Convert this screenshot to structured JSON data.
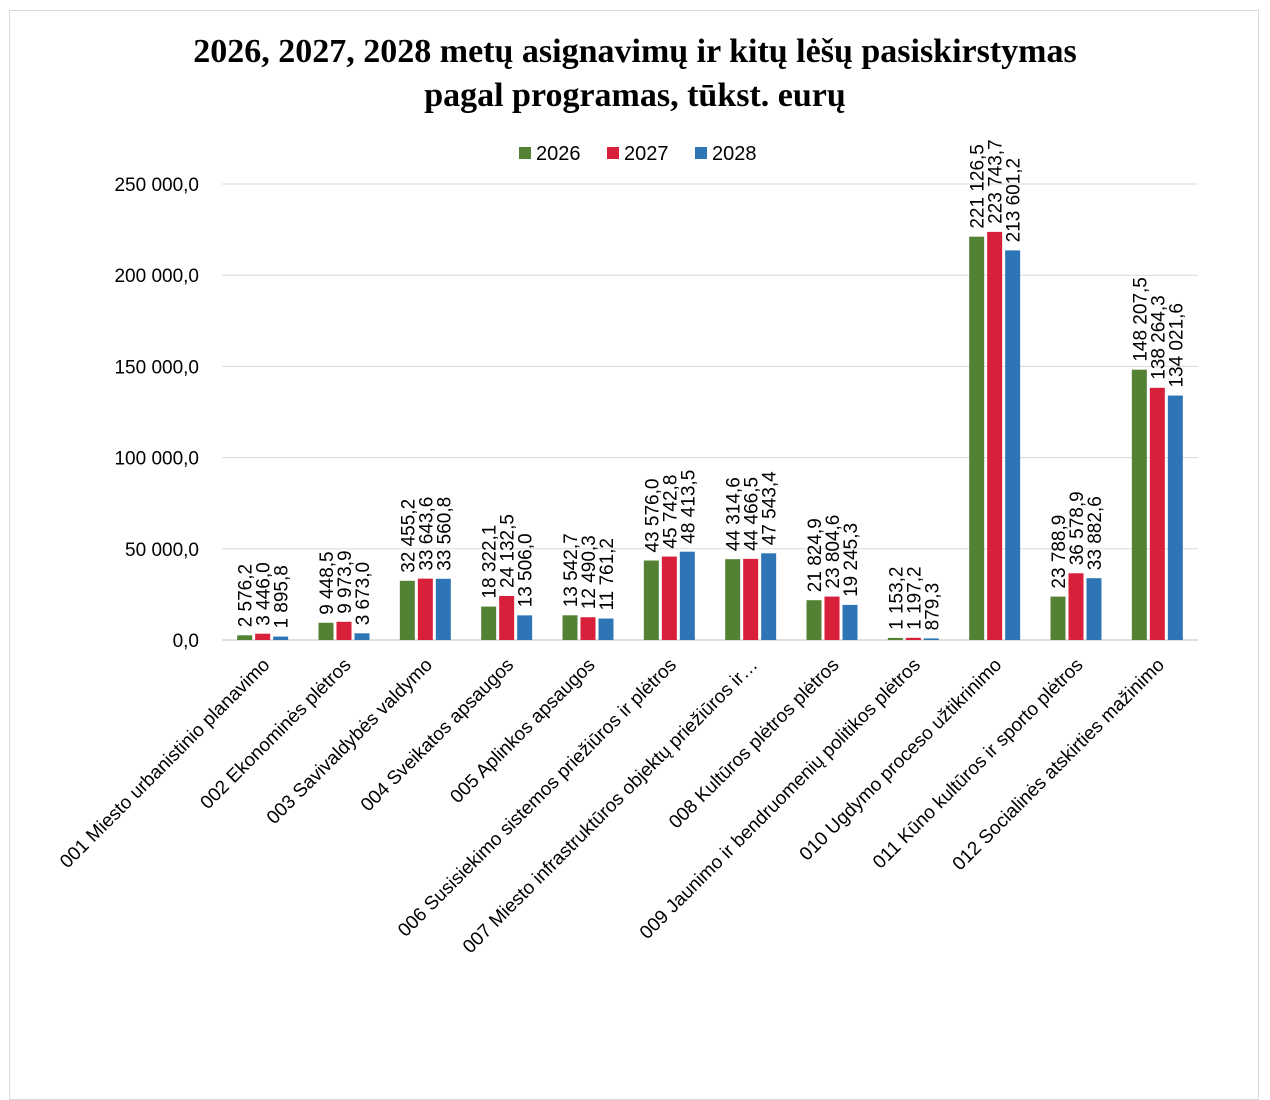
{
  "chart_data": {
    "type": "bar",
    "title": "2026, 2027, 2028 metų asignavimų ir kitų lėšų pasiskirstymas pagal programas, tūkst. eurų",
    "title_lines": [
      "2026, 2027, 2028 metų asignavimų ir kitų lėšų pasiskirstymas",
      "pagal programas, tūkst. eurų"
    ],
    "xlabel": "",
    "ylabel": "",
    "ylim": [
      0,
      250000
    ],
    "y_ticks": [
      0,
      50000,
      100000,
      150000,
      200000,
      250000
    ],
    "y_tick_labels": [
      "0,0",
      "50 000,0",
      "100 000,0",
      "150 000,0",
      "200 000,0",
      "250 000,0"
    ],
    "grid": true,
    "legend_position": "top",
    "categories": [
      "001 Miesto urbanistinio planavimo",
      "002 Ekonominės plėtros",
      "003 Savivaldybės valdymo",
      "004 Sveikatos apsaugos",
      "005 Aplinkos apsaugos",
      "006 Susisiekimo sistemos priežiūros ir plėtros",
      "007 Miesto infrastruktūros objektų priežiūros ir…",
      "008 Kultūros plėtros plėtros",
      "009 Jaunimo ir bendruomenių politikos plėtros",
      "010 Ugdymo proceso užtikrinimo",
      "011 Kūno kultūros ir sporto plėtros",
      "012 Socialinės atskirties mažinimo"
    ],
    "series": [
      {
        "name": "2026",
        "color": "#548235",
        "values": [
          2576.2,
          9448.5,
          32455.2,
          18322.1,
          13542.7,
          43576.0,
          44314.6,
          21824.9,
          1153.2,
          221126.5,
          23788.9,
          148207.5
        ],
        "labels": [
          "2 576,2",
          "9 448,5",
          "32 455,2",
          "18 322,1",
          "13 542,7",
          "43 576,0",
          "44 314,6",
          "21 824,9",
          "1 153,2",
          "221 126,5",
          "23 788,9",
          "148 207,5"
        ]
      },
      {
        "name": "2027",
        "color": "#d9203a",
        "values": [
          3446.0,
          9973.9,
          33643.6,
          24132.5,
          12490.3,
          45742.8,
          44466.5,
          23804.6,
          1197.2,
          223743.7,
          36578.9,
          138264.3
        ],
        "labels": [
          "3 446,0",
          "9 973,9",
          "33 643,6",
          "24 132,5",
          "12 490,3",
          "45 742,8",
          "44 466,5",
          "23 804,6",
          "1 197,2",
          "223 743,7",
          "36 578,9",
          "138 264,3"
        ]
      },
      {
        "name": "2028",
        "color": "#2e75b6",
        "values": [
          1895.8,
          3673.0,
          33560.8,
          13506.0,
          11761.2,
          48413.5,
          47543.4,
          19245.3,
          879.3,
          213601.2,
          33882.6,
          134021.6
        ],
        "labels": [
          "1 895,8",
          "3 673,0",
          "33 560,8",
          "13 506,0",
          "11 761,2",
          "48 413,5",
          "47 543,4",
          "19 245,3",
          "879,3",
          "213 601,2",
          "33 882,6",
          "134 021,6"
        ]
      }
    ]
  }
}
